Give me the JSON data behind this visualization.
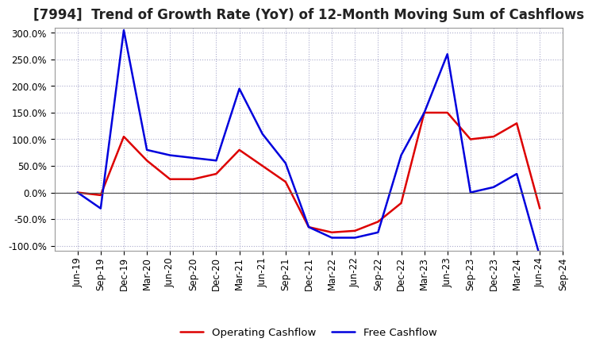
{
  "title": "[7994]  Trend of Growth Rate (YoY) of 12-Month Moving Sum of Cashflows",
  "x_labels": [
    "Jun-19",
    "Sep-19",
    "Dec-19",
    "Mar-20",
    "Jun-20",
    "Sep-20",
    "Dec-20",
    "Mar-21",
    "Jun-21",
    "Sep-21",
    "Dec-21",
    "Mar-22",
    "Jun-22",
    "Sep-22",
    "Dec-22",
    "Mar-23",
    "Jun-23",
    "Sep-23",
    "Dec-23",
    "Mar-24",
    "Jun-24",
    "Sep-24"
  ],
  "operating_cashflow": [
    0.0,
    -5.0,
    105.0,
    60.0,
    25.0,
    25.0,
    35.0,
    80.0,
    50.0,
    20.0,
    -65.0,
    -75.0,
    -72.0,
    -55.0,
    -20.0,
    150.0,
    150.0,
    100.0,
    105.0,
    130.0,
    -30.0,
    null
  ],
  "free_cashflow": [
    0.0,
    -30.0,
    305.0,
    80.0,
    70.0,
    65.0,
    60.0,
    195.0,
    110.0,
    55.0,
    -65.0,
    -85.0,
    -85.0,
    -75.0,
    70.0,
    150.0,
    260.0,
    0.0,
    10.0,
    35.0,
    -120.0,
    null
  ],
  "ylim": [
    -110,
    310
  ],
  "yticks": [
    -100,
    -50,
    0,
    50,
    100,
    150,
    200,
    250,
    300
  ],
  "operating_color": "#dd0000",
  "free_color": "#0000dd",
  "background_color": "#ffffff",
  "grid_color": "#aaaacc",
  "zero_line_color": "#555555",
  "legend_operating": "Operating Cashflow",
  "legend_free": "Free Cashflow",
  "title_fontsize": 12,
  "axis_fontsize": 8.5,
  "legend_fontsize": 9.5,
  "linewidth": 1.8
}
